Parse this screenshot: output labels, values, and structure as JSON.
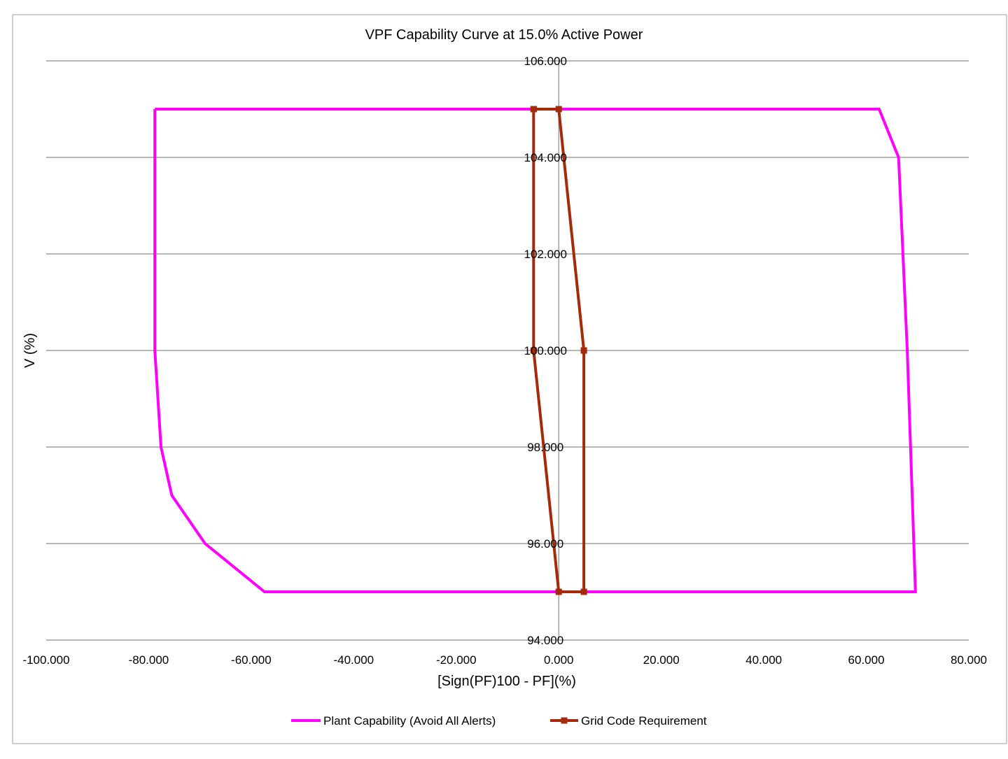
{
  "chart_data": {
    "type": "scatter",
    "title": "VPF Capability Curve at 15.0% Active Power",
    "xlabel": "[Sign(PF)100 - PF](%)",
    "ylabel": "V (%)",
    "xlim": [
      -100,
      80
    ],
    "ylim": [
      94,
      106
    ],
    "x_ticks": [
      -100,
      -80,
      -60,
      -40,
      -20,
      0,
      20,
      40,
      60,
      80
    ],
    "y_ticks": [
      94,
      96,
      98,
      100,
      102,
      104,
      106
    ],
    "x_tick_labels": [
      "-100.000",
      "-80.000",
      "-60.000",
      "-40.000",
      "-20.000",
      "0.000",
      "20.000",
      "40.000",
      "60.000",
      "80.000"
    ],
    "y_tick_labels": [
      "94.000",
      "96.000",
      "98.000",
      "100.000",
      "102.000",
      "104.000",
      "106.000"
    ],
    "grid": "horizontal",
    "legend_position": "bottom",
    "series": [
      {
        "name": "Plant Capability (Avoid All Alerts)",
        "color": "#ff00ff",
        "marker": "none",
        "points": [
          [
            -78.8,
            105
          ],
          [
            62.5,
            105
          ],
          [
            66.3,
            104
          ],
          [
            68,
            100
          ],
          [
            69.6,
            95
          ],
          [
            -57.4,
            95
          ],
          [
            -69,
            96
          ],
          [
            -75.5,
            97
          ],
          [
            -77.6,
            98
          ],
          [
            -78.8,
            100
          ],
          [
            -78.8,
            105
          ]
        ]
      },
      {
        "name": "Grid Code Requirement",
        "color": "#a52a0a",
        "marker": "square",
        "points": [
          [
            -4.9,
            105
          ],
          [
            0,
            105
          ],
          [
            4.9,
            100
          ],
          [
            4.9,
            95
          ],
          [
            0,
            95
          ],
          [
            -4.9,
            100
          ],
          [
            -4.9,
            105
          ]
        ]
      }
    ]
  }
}
